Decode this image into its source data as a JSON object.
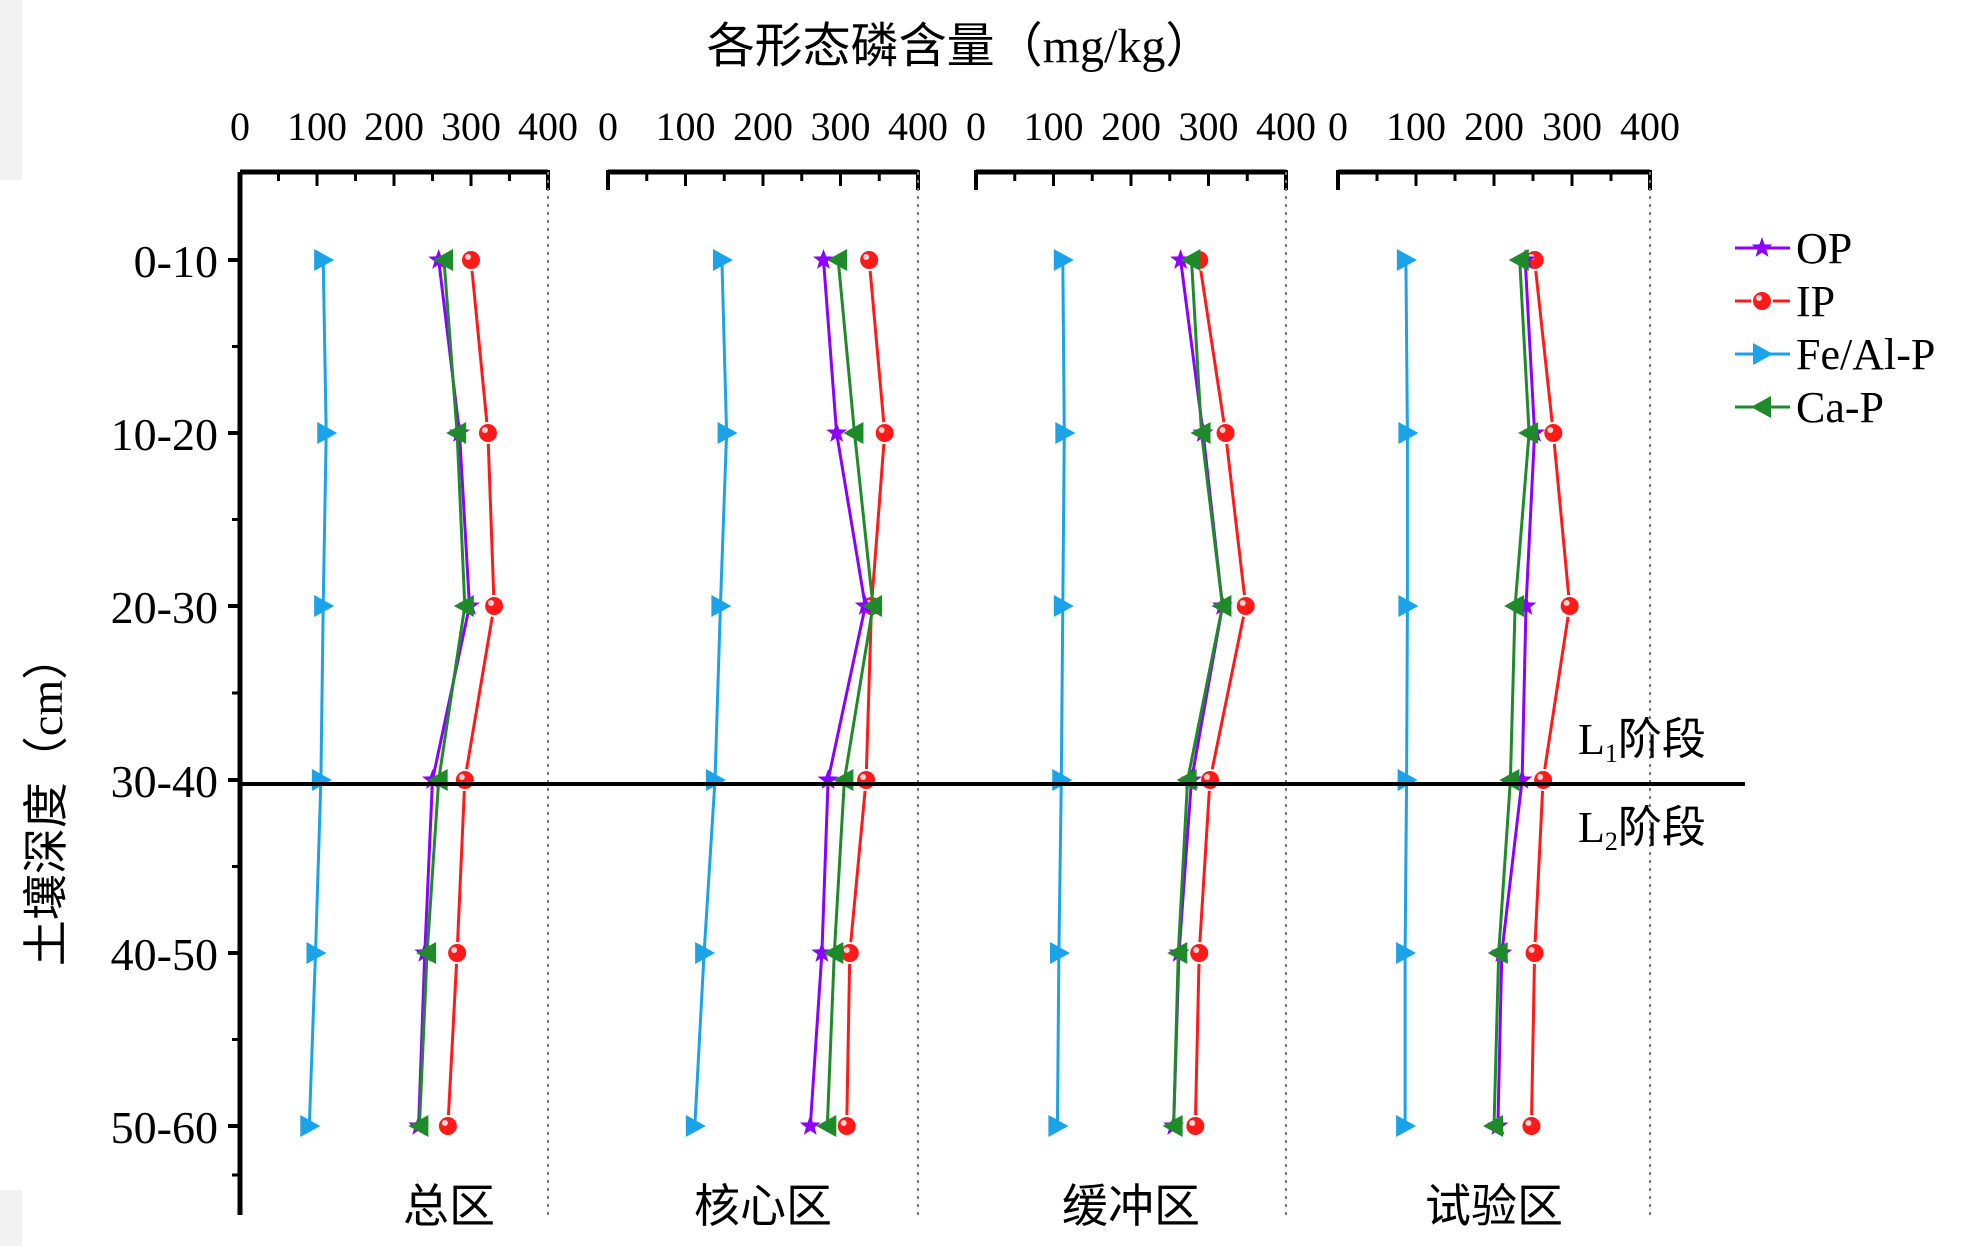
{
  "chart_data": {
    "type": "line",
    "title": "各形态磷含量（mg/kg）",
    "ylabel": "土壤深度（cm）",
    "categories": [
      "0-10",
      "10-20",
      "20-30",
      "30-40",
      "40-50",
      "50-60"
    ],
    "xlim": [
      0,
      400
    ],
    "x_ticks": [
      "0",
      "100",
      "200",
      "300",
      "400"
    ],
    "legend_position": "top-right",
    "grid": false,
    "panels": [
      {
        "name": "总区",
        "series": [
          {
            "name": "OP",
            "values": [
              258,
              285,
              298,
              250,
              240,
              232
            ]
          },
          {
            "name": "IP",
            "values": [
              300,
              322,
              330,
              292,
              282,
              270
            ]
          },
          {
            "name": "Fe/Al-P",
            "values": [
              108,
              112,
              108,
              105,
              98,
              90
            ]
          },
          {
            "name": "Ca-P",
            "values": [
              265,
              282,
              292,
              258,
              243,
              233
            ]
          }
        ]
      },
      {
        "name": "核心区",
        "series": [
          {
            "name": "OP",
            "values": [
              278,
              295,
              332,
              284,
              276,
              261
            ]
          },
          {
            "name": "IP",
            "values": [
              337,
              357,
              340,
              333,
              312,
              308
            ]
          },
          {
            "name": "Fe/Al-P",
            "values": [
              147,
              153,
              145,
              138,
              124,
              112
            ]
          },
          {
            "name": "Ca-P",
            "values": [
              297,
              318,
              342,
              305,
              292,
              283
            ]
          }
        ]
      },
      {
        "name": "缓冲区",
        "series": [
          {
            "name": "OP",
            "values": [
              264,
              293,
              318,
              278,
              262,
              255
            ]
          },
          {
            "name": "IP",
            "values": [
              288,
              322,
              348,
              302,
              288,
              283
            ]
          },
          {
            "name": "Fe/Al-P",
            "values": [
              112,
              114,
              112,
              110,
              107,
              105
            ]
          },
          {
            "name": "Ca-P",
            "values": [
              278,
              291,
              318,
              273,
              261,
              255
            ]
          }
        ]
      },
      {
        "name": "试验区",
        "series": [
          {
            "name": "OP",
            "values": [
              240,
              252,
              241,
              236,
              210,
              205
            ]
          },
          {
            "name": "IP",
            "values": [
              252,
              276,
              297,
              263,
              252,
              248
            ]
          },
          {
            "name": "Fe/Al-P",
            "values": [
              87,
              89,
              89,
              88,
              86,
              86
            ]
          },
          {
            "name": "Ca-P",
            "values": [
              233,
              245,
              227,
              221,
              206,
              200
            ]
          }
        ]
      }
    ],
    "annotations": {
      "stage_boundary_at": "30-40",
      "upper_label": {
        "base": "L",
        "sub": "1",
        "suffix": "阶段"
      },
      "lower_label": {
        "base": "L",
        "sub": "2",
        "suffix": "阶段"
      }
    }
  },
  "colors": {
    "OP": "#8b00ff",
    "IP": "#ff1a1a",
    "Fe/Al-P": "#1aa3e8",
    "Ca-P": "#1f8a2a"
  },
  "markers": {
    "OP": "star",
    "IP": "circle",
    "Fe/Al-P": "triangle-up",
    "Ca-P": "triangle-down"
  }
}
